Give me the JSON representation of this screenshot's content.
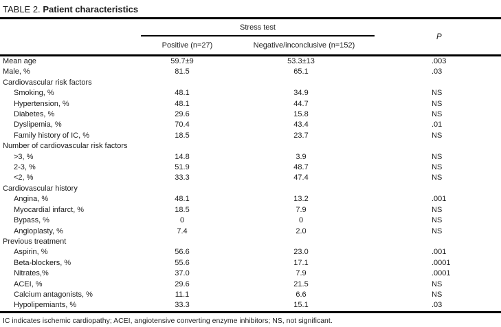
{
  "title": {
    "prefix": "TABLE 2.",
    "main": "Patient characteristics"
  },
  "header": {
    "group": "Stress test",
    "col_positive": "Positive (n=27)",
    "col_negative": "Negative/inconclusive (n=152)",
    "col_p": "P"
  },
  "rows": [
    {
      "label": "Mean age",
      "indent": 0,
      "positive": "59.7±9",
      "negative": "53.3±13",
      "p": ".003"
    },
    {
      "label": "Male, %",
      "indent": 0,
      "positive": "81.5",
      "negative": "65.1",
      "p": ".03"
    },
    {
      "label": "Cardiovascular risk factors",
      "indent": 0,
      "positive": "",
      "negative": "",
      "p": ""
    },
    {
      "label": "Smoking, %",
      "indent": 1,
      "positive": "48.1",
      "negative": "34.9",
      "p": "NS"
    },
    {
      "label": "Hypertension, %",
      "indent": 1,
      "positive": "48.1",
      "negative": "44.7",
      "p": "NS"
    },
    {
      "label": "Diabetes, %",
      "indent": 1,
      "positive": "29.6",
      "negative": "15.8",
      "p": "NS"
    },
    {
      "label": "Dyslipemia, %",
      "indent": 1,
      "positive": "70.4",
      "negative": "43.4",
      "p": ".01"
    },
    {
      "label": "Family history of IC, %",
      "indent": 1,
      "positive": "18.5",
      "negative": "23.7",
      "p": "NS"
    },
    {
      "label": "Number of cardiovascular risk factors",
      "indent": 0,
      "positive": "",
      "negative": "",
      "p": ""
    },
    {
      "label": ">3, %",
      "indent": 1,
      "positive": "14.8",
      "negative": "3.9",
      "p": "NS"
    },
    {
      "label": "2-3, %",
      "indent": 1,
      "positive": "51.9",
      "negative": "48.7",
      "p": "NS"
    },
    {
      "label": "<2, %",
      "indent": 1,
      "positive": "33.3",
      "negative": "47.4",
      "p": "NS"
    },
    {
      "label": "Cardiovascular history",
      "indent": 0,
      "positive": "",
      "negative": "",
      "p": ""
    },
    {
      "label": "Angina, %",
      "indent": 1,
      "positive": "48.1",
      "negative": "13.2",
      "p": ".001"
    },
    {
      "label": "Myocardial infarct, %",
      "indent": 1,
      "positive": "18.5",
      "negative": "7.9",
      "p": "NS"
    },
    {
      "label": "Bypass, %",
      "indent": 1,
      "positive": "0",
      "negative": "0",
      "p": "NS"
    },
    {
      "label": "Angioplasty, %",
      "indent": 1,
      "positive": "7.4",
      "negative": "2.0",
      "p": "NS"
    },
    {
      "label": "Previous treatment",
      "indent": 0,
      "positive": "",
      "negative": "",
      "p": ""
    },
    {
      "label": "Aspirin, %",
      "indent": 1,
      "positive": "56.6",
      "negative": "23.0",
      "p": ".001"
    },
    {
      "label": "Beta-blockers, %",
      "indent": 1,
      "positive": "55.6",
      "negative": "17.1",
      "p": ".0001"
    },
    {
      "label": "Nitrates,%",
      "indent": 1,
      "positive": "37.0",
      "negative": "7.9",
      "p": ".0001"
    },
    {
      "label": "ACEI, %",
      "indent": 1,
      "positive": "29.6",
      "negative": "21.5",
      "p": "NS"
    },
    {
      "label": "Calcium antagonists, %",
      "indent": 1,
      "positive": "11.1",
      "negative": "6.6",
      "p": "NS"
    },
    {
      "label": "Hypolipemiants, %",
      "indent": 1,
      "positive": "33.3",
      "negative": "15.1",
      "p": ".03"
    }
  ],
  "footnote": "IC indicates ischemic cardiopathy; ACEI, angiotensive converting enzyme inhibitors; NS, not significant."
}
